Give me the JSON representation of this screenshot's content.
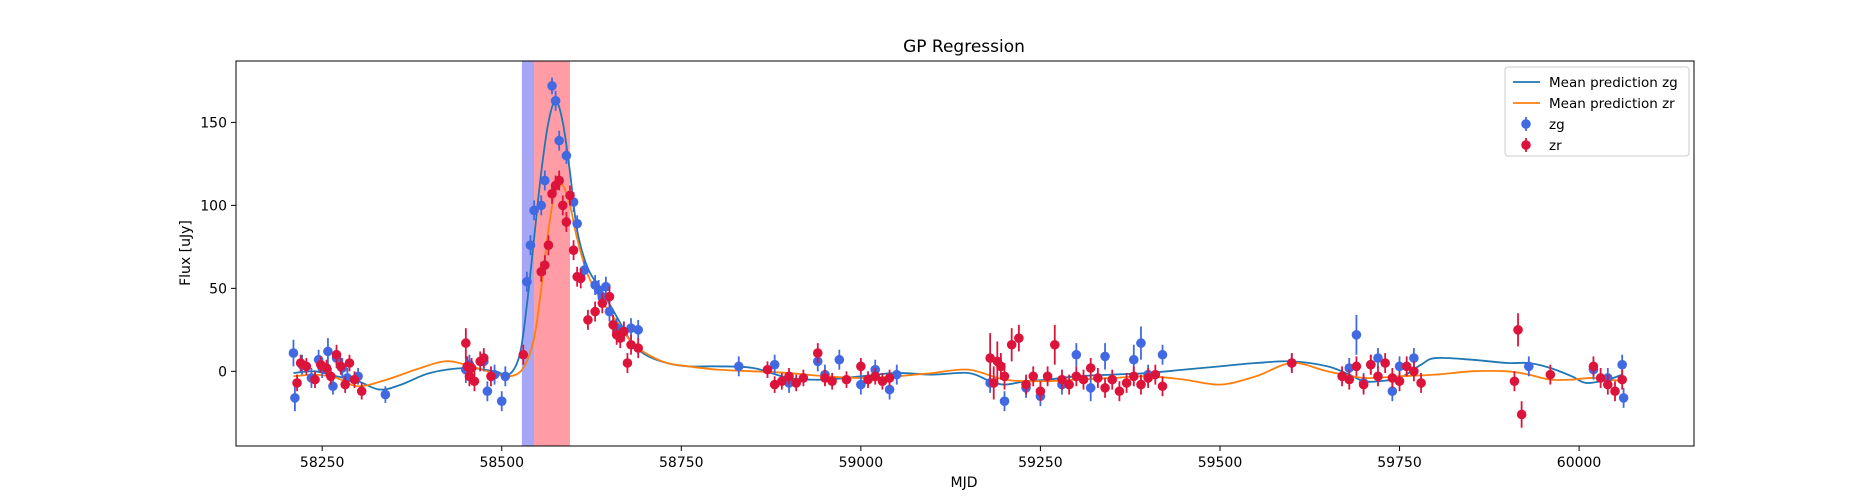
{
  "chart_data": {
    "type": "scatter",
    "title": "GP Regression",
    "xlabel": "MJD",
    "ylabel": "Flux [uJy]",
    "xlim": [
      58130,
      60160
    ],
    "ylim": [
      -45,
      187
    ],
    "xticks": [
      58250,
      58500,
      58750,
      59000,
      59250,
      59500,
      59750,
      60000
    ],
    "yticks": [
      0,
      50,
      100,
      150
    ],
    "grid": false,
    "legend": "top-right",
    "shaded_regions": [
      {
        "x0": 58528,
        "x1": 58545,
        "color": "#6b6bf0",
        "opacity": 0.6
      },
      {
        "x0": 58545,
        "x1": 58595,
        "color": "#ff5a6a",
        "opacity": 0.6
      }
    ],
    "series": [
      {
        "name": "Mean prediction zg",
        "kind": "line",
        "color": "#1f77b4",
        "x": [
          58210,
          58240,
          58270,
          58300,
          58330,
          58360,
          58400,
          58450,
          58490,
          58510,
          58525,
          58535,
          58545,
          58555,
          58565,
          58575,
          58585,
          58595,
          58605,
          58620,
          58640,
          58660,
          58680,
          58700,
          58730,
          58760,
          58800,
          58850,
          58900,
          58950,
          59000,
          59050,
          59100,
          59150,
          59180,
          59200,
          59230,
          59260,
          59300,
          59350,
          59400,
          59450,
          59500,
          59550,
          59600,
          59650,
          59680,
          59700,
          59720,
          59750,
          59780,
          59800,
          59850,
          59900,
          59930,
          59960,
          59990,
          60010,
          60040,
          60060
        ],
        "y": [
          -1,
          0,
          -3,
          -6,
          -11,
          -8,
          -1,
          2,
          0,
          -2,
          10,
          40,
          80,
          120,
          150,
          163,
          150,
          120,
          85,
          62,
          48,
          33,
          18,
          10,
          5,
          3,
          3,
          2,
          -4,
          -5,
          -3,
          -1,
          -2,
          -1,
          -6,
          -8,
          -6,
          -5,
          -3,
          -2,
          -1,
          1,
          3,
          5,
          6,
          3,
          -2,
          -6,
          -6,
          -4,
          4,
          8,
          7,
          5,
          5,
          2,
          -3,
          -7,
          -5,
          -2
        ]
      },
      {
        "name": "Mean prediction zr",
        "kind": "line",
        "color": "#ff7f0e",
        "x": [
          58210,
          58240,
          58270,
          58300,
          58340,
          58380,
          58420,
          58450,
          58480,
          58510,
          58530,
          58545,
          58555,
          58565,
          58575,
          58585,
          58595,
          58605,
          58620,
          58640,
          58660,
          58680,
          58700,
          58730,
          58760,
          58800,
          58850,
          58900,
          58950,
          59000,
          59050,
          59100,
          59150,
          59200,
          59250,
          59300,
          59350,
          59400,
          59450,
          59500,
          59550,
          59600,
          59650,
          59700,
          59750,
          59800,
          59850,
          59900,
          59930,
          59960,
          59990,
          60020,
          60060
        ],
        "y": [
          -3,
          -2,
          -4,
          -9,
          -5,
          1,
          6,
          4,
          0,
          -3,
          2,
          20,
          50,
          85,
          110,
          112,
          100,
          80,
          58,
          42,
          30,
          18,
          11,
          5,
          3,
          1,
          0,
          -1,
          -3,
          -4,
          -3,
          -1,
          1,
          -5,
          -6,
          -5,
          -4,
          -3,
          -5,
          -8,
          -3,
          5,
          0,
          -4,
          -3,
          -2,
          0,
          0,
          -2,
          -5,
          -5,
          -4,
          -6
        ]
      },
      {
        "name": "zg",
        "kind": "errorbar",
        "color": "#4169e1",
        "x": [
          58210,
          58212,
          58222,
          58235,
          58245,
          58250,
          58258,
          58265,
          58270,
          58278,
          58285,
          58300,
          58338,
          58450,
          58455,
          58475,
          58480,
          58490,
          58500,
          58505,
          58535,
          58540,
          58545,
          58555,
          58560,
          58570,
          58575,
          58580,
          58590,
          58600,
          58605,
          58615,
          58630,
          58635,
          58640,
          58645,
          58650,
          58660,
          58670,
          58680,
          58690,
          58830,
          58880,
          58900,
          58940,
          58950,
          58970,
          59000,
          59020,
          59040,
          59050,
          59180,
          59200,
          59230,
          59250,
          59280,
          59300,
          59320,
          59340,
          59380,
          59390,
          59400,
          59420,
          59600,
          59680,
          59690,
          59700,
          59710,
          59720,
          59740,
          59750,
          59770,
          59930,
          60020,
          60040,
          60060,
          60062
        ],
        "y": [
          11,
          -16,
          4,
          -4,
          7,
          2,
          12,
          -9,
          8,
          2,
          -4,
          -3,
          -14,
          1,
          4,
          6,
          -12,
          -2,
          -18,
          -3,
          54,
          76,
          97,
          100,
          115,
          172,
          163,
          139,
          130,
          102,
          89,
          61,
          52,
          49,
          45,
          51,
          36,
          26,
          24,
          26,
          25,
          3,
          4,
          -7,
          6,
          -2,
          7,
          -8,
          1,
          -11,
          -2,
          -7,
          -18,
          -10,
          -15,
          -8,
          10,
          -10,
          9,
          7,
          17,
          -2,
          10,
          5,
          2,
          22,
          -7,
          4,
          8,
          -12,
          3,
          8,
          3,
          1,
          -4,
          4,
          -16
        ],
        "err": [
          8,
          8,
          6,
          6,
          6,
          6,
          8,
          5,
          6,
          6,
          6,
          5,
          5,
          8,
          6,
          6,
          6,
          6,
          6,
          6,
          6,
          6,
          6,
          6,
          6,
          5,
          6,
          6,
          5,
          6,
          5,
          6,
          6,
          6,
          6,
          6,
          6,
          6,
          6,
          6,
          6,
          6,
          6,
          6,
          6,
          6,
          6,
          6,
          6,
          6,
          6,
          6,
          6,
          6,
          6,
          6,
          7,
          8,
          8,
          9,
          10,
          6,
          6,
          6,
          6,
          12,
          6,
          6,
          6,
          6,
          6,
          6,
          6,
          6,
          6,
          6,
          6
        ]
      },
      {
        "name": "zr",
        "kind": "errorbar",
        "color": "#dc143c",
        "x": [
          58215,
          58220,
          58228,
          58240,
          58248,
          58256,
          58262,
          58270,
          58276,
          58282,
          58288,
          58295,
          58305,
          58450,
          58452,
          58455,
          58458,
          58462,
          58470,
          58475,
          58485,
          58530,
          58555,
          58560,
          58565,
          58570,
          58575,
          58580,
          58585,
          58590,
          58595,
          58600,
          58605,
          58610,
          58620,
          58630,
          58640,
          58650,
          58655,
          58660,
          58665,
          58670,
          58675,
          58680,
          58690,
          58870,
          58880,
          58890,
          58900,
          58910,
          58920,
          58940,
          58950,
          58960,
          58980,
          59000,
          59010,
          59020,
          59030,
          59040,
          59180,
          59185,
          59190,
          59195,
          59200,
          59210,
          59220,
          59230,
          59240,
          59250,
          59260,
          59270,
          59280,
          59290,
          59300,
          59310,
          59320,
          59330,
          59340,
          59350,
          59360,
          59370,
          59380,
          59390,
          59400,
          59410,
          59420,
          59600,
          59670,
          59680,
          59690,
          59700,
          59710,
          59720,
          59730,
          59740,
          59750,
          59760,
          59770,
          59780,
          59910,
          59915,
          59920,
          59960,
          60020,
          60030,
          60040,
          60050,
          60060
        ],
        "y": [
          -7,
          5,
          3,
          -5,
          4,
          2,
          -3,
          10,
          3,
          -8,
          5,
          -5,
          -12,
          17,
          3,
          -3,
          2,
          -6,
          6,
          8,
          -3,
          10,
          60,
          64,
          76,
          107,
          112,
          115,
          100,
          90,
          106,
          73,
          57,
          56,
          31,
          36,
          41,
          45,
          28,
          22,
          20,
          24,
          5,
          16,
          14,
          1,
          -8,
          -6,
          -3,
          -7,
          -4,
          11,
          -4,
          -6,
          -5,
          3,
          -5,
          -3,
          -6,
          -4,
          8,
          -7,
          6,
          3,
          -3,
          16,
          20,
          -8,
          -3,
          -12,
          -3,
          16,
          -5,
          -8,
          -3,
          -5,
          2,
          -4,
          -10,
          -5,
          -12,
          -7,
          -3,
          -8,
          -4,
          -2,
          -9,
          5,
          -3,
          -5,
          3,
          -8,
          4,
          -3,
          5,
          -4,
          -6,
          3,
          0,
          -7,
          -6,
          25,
          -26,
          -2,
          3,
          -4,
          -8,
          -12,
          -5
        ],
        "err": [
          5,
          5,
          5,
          5,
          5,
          5,
          5,
          6,
          5,
          5,
          5,
          5,
          5,
          9,
          6,
          6,
          6,
          6,
          6,
          6,
          6,
          6,
          6,
          6,
          6,
          6,
          6,
          6,
          6,
          6,
          6,
          6,
          6,
          6,
          6,
          6,
          6,
          6,
          6,
          6,
          6,
          6,
          6,
          6,
          6,
          5,
          5,
          5,
          5,
          5,
          5,
          6,
          5,
          5,
          5,
          5,
          5,
          5,
          5,
          5,
          15,
          10,
          12,
          8,
          8,
          10,
          8,
          6,
          6,
          6,
          6,
          12,
          6,
          6,
          6,
          6,
          6,
          6,
          6,
          6,
          6,
          6,
          6,
          6,
          6,
          6,
          6,
          6,
          6,
          6,
          6,
          6,
          6,
          6,
          6,
          6,
          6,
          6,
          6,
          6,
          6,
          10,
          8,
          6,
          6,
          6,
          6,
          6,
          6
        ]
      }
    ]
  }
}
